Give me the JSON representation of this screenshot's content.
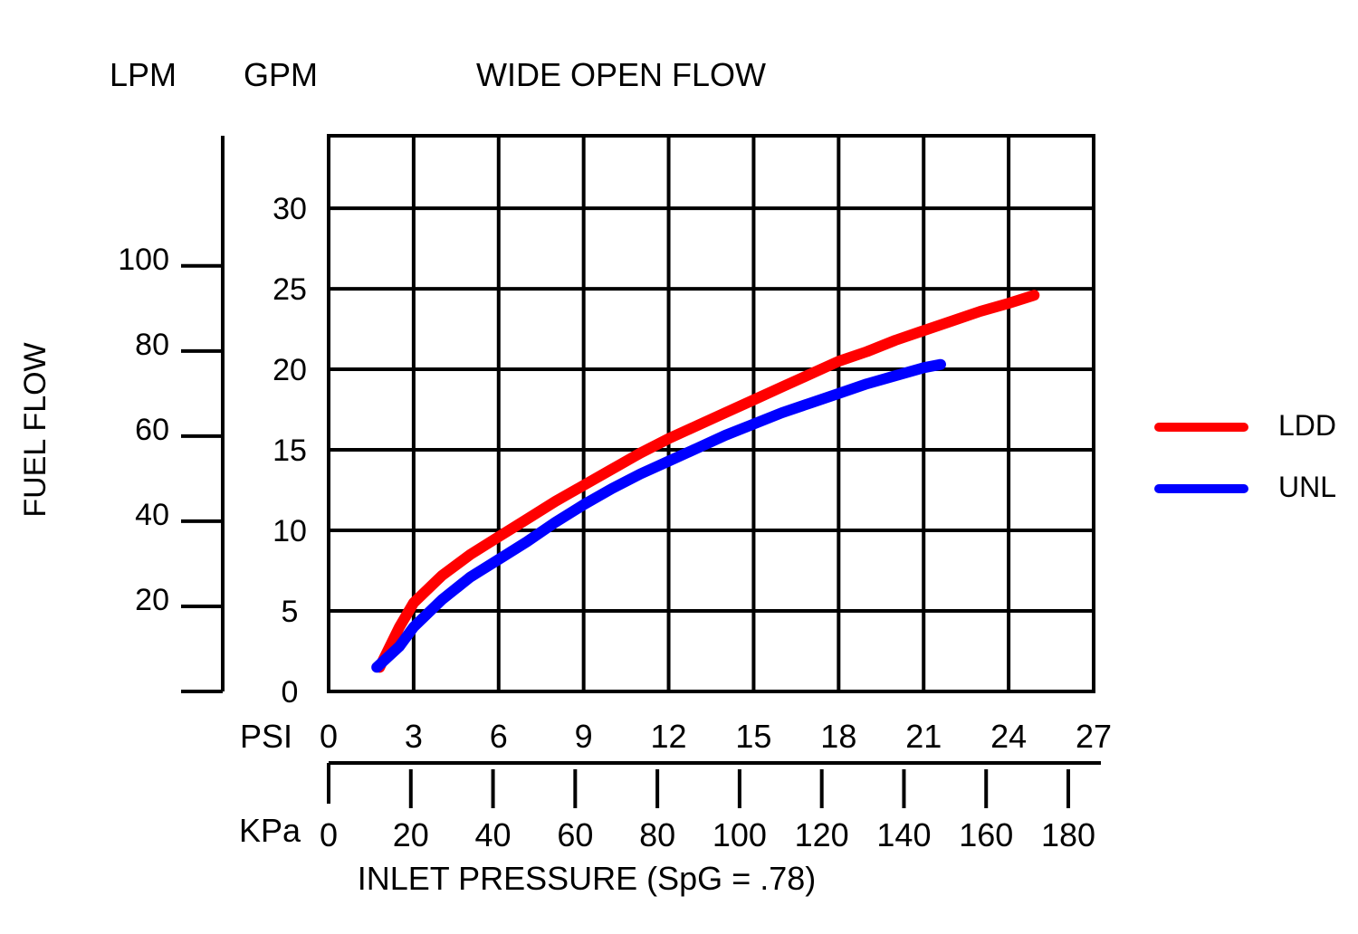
{
  "chart_data": {
    "type": "line",
    "title": "WIDE OPEN FLOW",
    "ylabel": "FUEL FLOW",
    "xlabel": "INLET PRESSURE (SpG = .78)",
    "y_axes": {
      "lpm": {
        "unit_label": "LPM",
        "ticks": [
          20,
          40,
          60,
          80,
          100
        ]
      },
      "gpm": {
        "unit_label": "GPM",
        "ticks": [
          0,
          5,
          10,
          15,
          20,
          25,
          30
        ],
        "ylim": [
          0,
          34.5
        ]
      }
    },
    "x_axes": {
      "psi": {
        "unit_label": "PSI",
        "ticks": [
          0,
          3,
          6,
          9,
          12,
          15,
          18,
          21,
          24,
          27
        ],
        "xlim": [
          0,
          27
        ]
      },
      "kpa": {
        "unit_label": "KPa",
        "ticks": [
          0,
          20,
          40,
          60,
          80,
          100,
          120,
          140,
          160,
          180
        ]
      }
    },
    "grid": true,
    "legend_position": "right",
    "series": [
      {
        "name": "LDD",
        "color": "#ff0000",
        "x": [
          1.8,
          2.5,
          3,
          4,
          5,
          6,
          7,
          8,
          9,
          10,
          11,
          12,
          13,
          14,
          15,
          16,
          17,
          18,
          19,
          20,
          21,
          22,
          23,
          24,
          24.9
        ],
        "y": [
          1.5,
          4,
          5.5,
          7.2,
          8.5,
          9.6,
          10.7,
          11.8,
          12.8,
          13.8,
          14.8,
          15.7,
          16.5,
          17.3,
          18.1,
          18.9,
          19.7,
          20.5,
          21.1,
          21.8,
          22.4,
          23,
          23.6,
          24.1,
          24.6
        ]
      },
      {
        "name": "UNL",
        "color": "#0000ff",
        "x": [
          1.7,
          2.5,
          3,
          4,
          5,
          6,
          7,
          8,
          9,
          10,
          11,
          12,
          13,
          14,
          15,
          16,
          17,
          18,
          19,
          20,
          21,
          21.6
        ],
        "y": [
          1.5,
          2.8,
          4,
          5.7,
          7.1,
          8.2,
          9.3,
          10.5,
          11.6,
          12.6,
          13.5,
          14.3,
          15.1,
          15.9,
          16.6,
          17.3,
          17.9,
          18.5,
          19.1,
          19.6,
          20.1,
          20.3
        ]
      }
    ]
  }
}
